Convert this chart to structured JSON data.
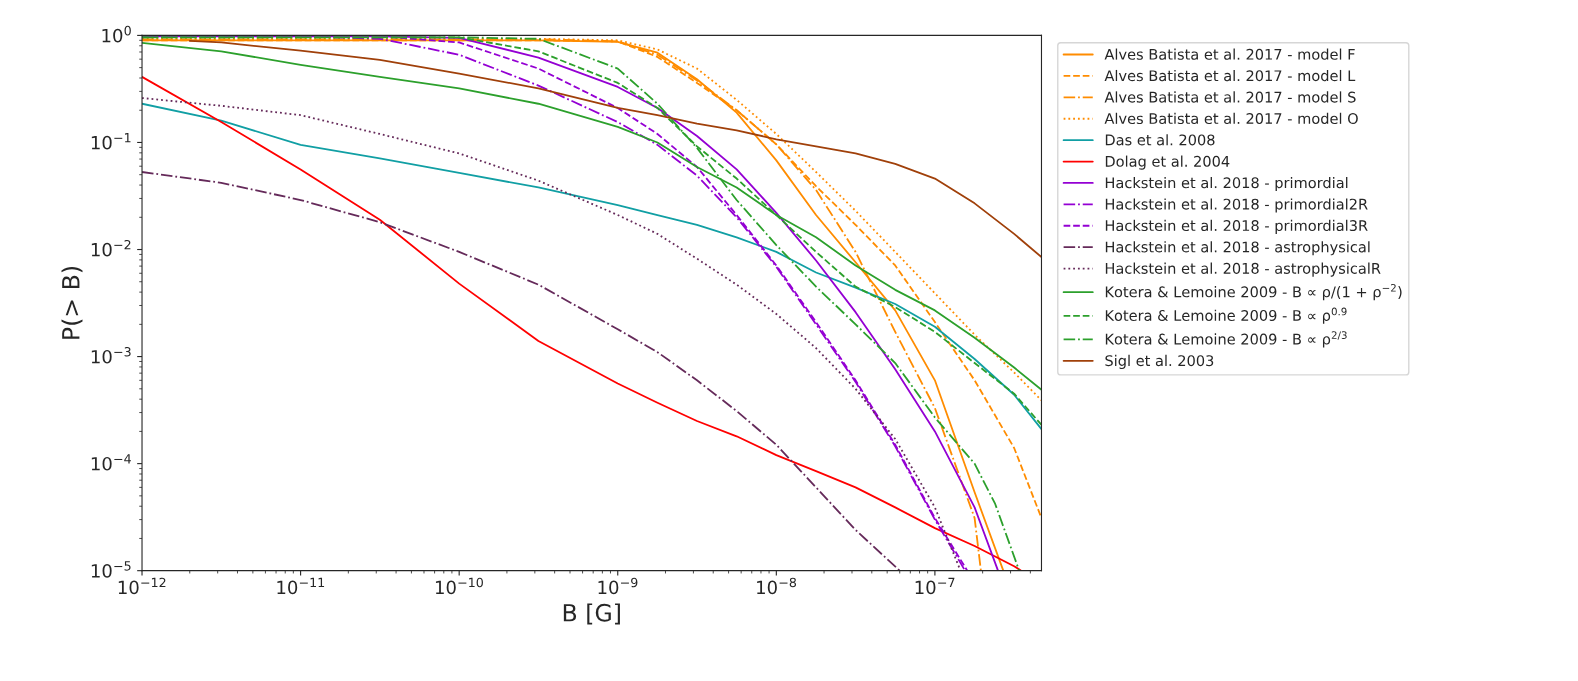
{
  "chart_data": {
    "type": "line",
    "xlabel": "B [G]",
    "ylabel": "P(> B)",
    "log": "xy",
    "grid": false,
    "legend": "right",
    "marker": "none",
    "xlim": [
      1e-12,
      4.7e-07
    ],
    "ylim": [
      1e-05,
      1
    ],
    "xticks": [
      {
        "value": 1e-12,
        "label": "10$^{−12}$"
      },
      {
        "value": 1e-11,
        "label": "10$^{−11}$"
      },
      {
        "value": 1e-10,
        "label": "10$^{−10}$"
      },
      {
        "value": 1e-09,
        "label": "10$^{−9}$"
      },
      {
        "value": 1e-08,
        "label": "10$^{−8}$"
      },
      {
        "value": 1e-07,
        "label": "10$^{−7}$"
      }
    ],
    "yticks": [
      {
        "value": 1e-05,
        "label": "10$^{−5}$"
      },
      {
        "value": 0.0001,
        "label": "10$^{−4}$"
      },
      {
        "value": 0.001,
        "label": "10$^{−3}$"
      },
      {
        "value": 0.01,
        "label": "10$^{−2}$"
      },
      {
        "value": 0.1,
        "label": "10$^{−1}$"
      },
      {
        "value": 1,
        "label": "10$^{0}$"
      }
    ],
    "series": [
      {
        "name": "Alves Batista et al. 2017 - model F",
        "color": "#ff8c00",
        "line_style": "solid",
        "x": [
          1e-12,
          3.16e-12,
          1e-11,
          3.16e-11,
          1e-10,
          3.16e-10,
          1e-09,
          1.78e-09,
          3.16e-09,
          5.62e-09,
          1e-08,
          1.78e-08,
          3.16e-08,
          5.62e-08,
          1e-07,
          1.78e-07,
          2.7e-07
        ],
        "values": [
          0.9,
          0.9,
          0.9,
          0.9,
          0.9,
          0.9,
          0.87,
          0.69,
          0.39,
          0.19,
          0.068,
          0.021,
          0.0076,
          0.0027,
          0.0006,
          5.4e-05,
          1e-05
        ]
      },
      {
        "name": "Alves Batista et al. 2017 - model L",
        "color": "#ff8c00",
        "line_style": "dashed",
        "x": [
          1e-12,
          3.16e-12,
          1e-11,
          3.16e-11,
          1e-10,
          3.16e-10,
          1e-09,
          1.78e-09,
          3.16e-09,
          5.62e-09,
          1e-08,
          1.78e-08,
          3.16e-08,
          5.62e-08,
          1e-07,
          1.78e-07,
          3.16e-07,
          4.7e-07
        ],
        "values": [
          0.9,
          0.9,
          0.9,
          0.9,
          0.9,
          0.9,
          0.88,
          0.63,
          0.36,
          0.2,
          0.096,
          0.039,
          0.017,
          0.0071,
          0.0021,
          0.0006,
          0.00014,
          3.1e-05
        ]
      },
      {
        "name": "Alves Batista et al. 2017 - model S",
        "color": "#ff8c00",
        "line_style": "dashdot",
        "x": [
          1e-12,
          3.16e-12,
          1e-11,
          3.16e-11,
          1e-10,
          3.16e-10,
          1e-09,
          1.78e-09,
          3.16e-09,
          5.62e-09,
          1e-08,
          1.78e-08,
          3.16e-08,
          5.62e-08,
          1e-07,
          1.78e-07,
          1.95e-07
        ],
        "values": [
          0.92,
          0.92,
          0.92,
          0.92,
          0.92,
          0.92,
          0.88,
          0.66,
          0.38,
          0.2,
          0.096,
          0.036,
          0.0095,
          0.0017,
          0.00033,
          3.1e-05,
          1e-05
        ]
      },
      {
        "name": "Alves Batista et al. 2017 - model O",
        "color": "#ff8c00",
        "line_style": "dotted",
        "x": [
          1e-12,
          3.16e-12,
          1e-11,
          3.16e-11,
          1e-10,
          3.16e-10,
          1e-09,
          1.78e-09,
          3.16e-09,
          5.62e-09,
          1e-08,
          1.78e-08,
          3.16e-08,
          5.62e-08,
          1e-07,
          1.78e-07,
          3.16e-07,
          4.7e-07
        ],
        "values": [
          0.93,
          0.93,
          0.93,
          0.93,
          0.93,
          0.93,
          0.9,
          0.74,
          0.49,
          0.25,
          0.12,
          0.053,
          0.023,
          0.0095,
          0.0039,
          0.0016,
          0.00071,
          0.00039
        ]
      },
      {
        "name": "Das et al. 2008",
        "color": "#119fa4",
        "line_style": "solid",
        "x": [
          1e-12,
          3.16e-12,
          1e-11,
          3.16e-11,
          1e-10,
          3.16e-10,
          1e-09,
          1.78e-09,
          3.16e-09,
          5.62e-09,
          1e-08,
          1.78e-08,
          3.16e-08,
          5.62e-08,
          1e-07,
          1.78e-07,
          3.16e-07,
          4.7e-07
        ],
        "values": [
          0.23,
          0.16,
          0.095,
          0.071,
          0.052,
          0.038,
          0.026,
          0.021,
          0.017,
          0.013,
          0.0095,
          0.0061,
          0.0044,
          0.0031,
          0.0019,
          0.00095,
          0.00044,
          0.00021
        ]
      },
      {
        "name": "Dolag et al. 2004",
        "color": "#ff0000",
        "line_style": "solid",
        "x": [
          1e-12,
          3.16e-12,
          1e-11,
          3.16e-11,
          1e-10,
          3.16e-10,
          1e-09,
          1.78e-09,
          3.16e-09,
          5.62e-09,
          1e-08,
          1.78e-08,
          3.16e-08,
          5.62e-08,
          1e-07,
          1.78e-07,
          3.16e-07,
          3.5e-07
        ],
        "values": [
          0.41,
          0.155,
          0.056,
          0.019,
          0.0048,
          0.0014,
          0.00056,
          0.00037,
          0.00025,
          0.00018,
          0.00012,
          8.5e-05,
          6e-05,
          3.9e-05,
          2.5e-05,
          1.7e-05,
          1.1e-05,
          1e-05
        ]
      },
      {
        "name": "Hackstein et al. 2018 - primordial",
        "color": "#9400d3",
        "line_style": "solid",
        "x": [
          1e-12,
          3.16e-12,
          1e-11,
          3.16e-11,
          1e-10,
          3.16e-10,
          1e-09,
          1.78e-09,
          3.16e-09,
          5.62e-09,
          1e-08,
          1.78e-08,
          3.16e-08,
          5.62e-08,
          1e-07,
          1.78e-07,
          2.5e-07
        ],
        "values": [
          0.98,
          0.98,
          0.98,
          0.98,
          0.95,
          0.62,
          0.33,
          0.21,
          0.115,
          0.056,
          0.022,
          0.0079,
          0.0026,
          0.00076,
          0.0002,
          3.9e-05,
          1e-05
        ]
      },
      {
        "name": "Hackstein et al. 2018 - primordial2R",
        "color": "#9400d3",
        "line_style": "dashdot",
        "x": [
          1e-12,
          3.16e-12,
          1e-11,
          3.16e-11,
          1e-10,
          3.16e-10,
          1e-09,
          1.78e-09,
          3.16e-09,
          5.62e-09,
          1e-08,
          1.78e-08,
          3.16e-08,
          5.62e-08,
          1e-07,
          1.55e-07
        ],
        "values": [
          0.98,
          0.98,
          0.98,
          0.93,
          0.66,
          0.34,
          0.155,
          0.095,
          0.049,
          0.02,
          0.0069,
          0.002,
          0.00058,
          0.000145,
          3e-05,
          1e-05
        ]
      },
      {
        "name": "Hackstein et al. 2018 - primordial3R",
        "color": "#9400d3",
        "line_style": "dashed",
        "x": [
          1e-12,
          3.16e-12,
          1e-11,
          3.16e-11,
          1e-10,
          3.16e-10,
          1e-09,
          1.78e-09,
          3.16e-09,
          5.62e-09,
          1e-08,
          1.78e-08,
          3.16e-08,
          5.62e-08,
          1e-07,
          1.6e-07
        ],
        "values": [
          0.98,
          0.98,
          0.98,
          0.98,
          0.86,
          0.49,
          0.21,
          0.12,
          0.059,
          0.021,
          0.0071,
          0.0021,
          0.0006,
          0.00015,
          3.1e-05,
          1e-05
        ]
      },
      {
        "name": "Hackstein et al. 2018 - astrophysical",
        "color": "#652a5a",
        "line_style": "dashdot",
        "x": [
          1e-12,
          3.16e-12,
          1e-11,
          3.16e-11,
          1e-10,
          3.16e-10,
          1e-09,
          1.78e-09,
          3.16e-09,
          5.62e-09,
          1e-08,
          1.78e-08,
          3.16e-08,
          6e-08
        ],
        "values": [
          0.053,
          0.042,
          0.029,
          0.018,
          0.0095,
          0.0047,
          0.0018,
          0.0011,
          0.0006,
          0.00031,
          0.00015,
          6e-05,
          2.4e-05,
          1e-05
        ]
      },
      {
        "name": "Hackstein et al. 2018 - astrophysicalR",
        "color": "#652a5a",
        "line_style": "dotted",
        "x": [
          1e-12,
          3.16e-12,
          1e-11,
          3.16e-11,
          1e-10,
          3.16e-10,
          1e-09,
          1.78e-09,
          3.16e-09,
          5.62e-09,
          1e-08,
          1.78e-08,
          3.16e-08,
          5.62e-08,
          1e-07,
          1.45e-07
        ],
        "values": [
          0.26,
          0.22,
          0.18,
          0.12,
          0.079,
          0.044,
          0.021,
          0.014,
          0.0082,
          0.0047,
          0.0025,
          0.0012,
          0.0005,
          0.00017,
          3.9e-05,
          1e-05
        ]
      },
      {
        "name": "Kotera & Lemoine 2009 - B ∝ ρ/(1 + ρ$^{−2}$)",
        "color": "#2ca02c",
        "line_style": "solid",
        "x": [
          1e-12,
          3.16e-12,
          1e-11,
          3.16e-11,
          1e-10,
          3.16e-10,
          1e-09,
          1.78e-09,
          3.16e-09,
          5.62e-09,
          1e-08,
          1.78e-08,
          3.16e-08,
          5.62e-08,
          1e-07,
          1.78e-07,
          3.16e-07,
          4.7e-07
        ],
        "values": [
          0.85,
          0.71,
          0.53,
          0.41,
          0.32,
          0.23,
          0.14,
          0.1,
          0.059,
          0.038,
          0.021,
          0.013,
          0.0071,
          0.0042,
          0.0027,
          0.0015,
          0.00079,
          0.00049
        ]
      },
      {
        "name": "Kotera & Lemoine 2009 - B ∝ ρ$^{0.9}$",
        "color": "#2ca02c",
        "line_style": "dashed",
        "x": [
          1e-12,
          3.16e-12,
          1e-11,
          3.16e-11,
          1e-10,
          3.16e-10,
          1e-09,
          1.78e-09,
          3.16e-09,
          5.62e-09,
          1e-08,
          1.78e-08,
          3.16e-08,
          5.62e-08,
          1e-07,
          1.78e-07,
          3.16e-07,
          4.7e-07
        ],
        "values": [
          0.96,
          0.96,
          0.96,
          0.96,
          0.96,
          0.71,
          0.36,
          0.21,
          0.092,
          0.046,
          0.021,
          0.0095,
          0.0045,
          0.0029,
          0.0017,
          0.00087,
          0.00045,
          0.00023
        ]
      },
      {
        "name": "Kotera & Lemoine 2009 - B ∝ ρ$^{2/3}$",
        "color": "#2ca02c",
        "line_style": "dashdot",
        "x": [
          1e-12,
          3.16e-12,
          1e-11,
          3.16e-11,
          1e-10,
          3.16e-10,
          1e-09,
          1.78e-09,
          3.16e-09,
          5.62e-09,
          1e-08,
          1.78e-08,
          3.16e-08,
          5.62e-08,
          1e-07,
          1.78e-07,
          2.4e-07,
          3.4e-07
        ],
        "values": [
          0.96,
          0.96,
          0.96,
          0.96,
          0.96,
          0.93,
          0.49,
          0.23,
          0.089,
          0.029,
          0.011,
          0.0045,
          0.002,
          0.00087,
          0.00027,
          0.0001,
          4.2e-05,
          1e-05
        ]
      },
      {
        "name": "Sigl et al. 2003",
        "color": "#a0400a",
        "line_style": "solid",
        "x": [
          2e-12,
          3.16e-12,
          1e-11,
          3.16e-11,
          1e-10,
          3.16e-10,
          1e-09,
          1.78e-09,
          3.16e-09,
          5.62e-09,
          1e-08,
          1.78e-08,
          3.16e-08,
          5.62e-08,
          1e-07,
          1.78e-07,
          3.16e-07,
          4.7e-07
        ],
        "values": [
          0.89,
          0.86,
          0.72,
          0.59,
          0.44,
          0.32,
          0.21,
          0.18,
          0.15,
          0.13,
          0.107,
          0.092,
          0.079,
          0.063,
          0.046,
          0.027,
          0.014,
          0.0085
        ]
      }
    ]
  }
}
